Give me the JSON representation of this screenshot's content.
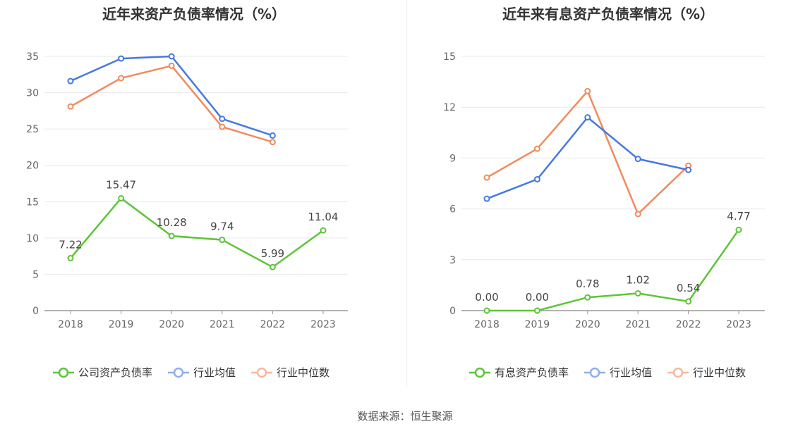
{
  "source_text": "数据来源：恒生聚源",
  "chart_data": [
    {
      "type": "line",
      "title": "近年来资产负债率情况（%）",
      "categories": [
        "2018",
        "2019",
        "2020",
        "2021",
        "2022",
        "2023"
      ],
      "ylim": [
        0,
        35
      ],
      "yticks": [
        "0",
        "5",
        "10",
        "15",
        "20",
        "25",
        "30",
        "35"
      ],
      "grid": true,
      "legend_position": "bottom",
      "series": [
        {
          "name": "公司资产负债率",
          "color": "#5ec43a",
          "labels": true,
          "values": [
            7.22,
            15.47,
            10.28,
            9.74,
            5.99,
            11.04
          ],
          "value_labels": [
            "7.22",
            "15.47",
            "10.28",
            "9.74",
            "5.99",
            "11.04"
          ]
        },
        {
          "name": "行业均值",
          "color": "#4679e0",
          "labels": false,
          "values": [
            31.6,
            34.7,
            35.0,
            26.4,
            24.1,
            null
          ]
        },
        {
          "name": "行业中位数",
          "color": "#f28a5c",
          "labels": false,
          "values": [
            28.1,
            32.0,
            33.7,
            25.3,
            23.2,
            null
          ]
        }
      ]
    },
    {
      "type": "line",
      "title": "近年来有息资产负债率情况（%）",
      "categories": [
        "2018",
        "2019",
        "2020",
        "2021",
        "2022",
        "2023"
      ],
      "ylim": [
        0,
        15
      ],
      "yticks": [
        "0",
        "3",
        "6",
        "9",
        "12",
        "15"
      ],
      "grid": true,
      "legend_position": "bottom",
      "series": [
        {
          "name": "有息资产负债率",
          "color": "#5ec43a",
          "labels": true,
          "values": [
            0.0,
            0.0,
            0.78,
            1.02,
            0.54,
            4.77
          ],
          "value_labels": [
            "0.00",
            "0.00",
            "0.78",
            "1.02",
            "0.54",
            "4.77"
          ]
        },
        {
          "name": "行业均值",
          "color": "#4679e0",
          "labels": false,
          "values": [
            6.6,
            7.75,
            11.4,
            8.95,
            8.3,
            null
          ]
        },
        {
          "name": "行业中位数",
          "color": "#f28a5c",
          "labels": false,
          "values": [
            7.85,
            9.55,
            12.95,
            5.7,
            8.55,
            null
          ]
        }
      ]
    }
  ]
}
